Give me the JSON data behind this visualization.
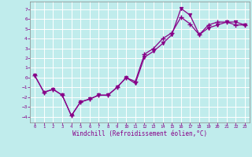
{
  "background_color": "#c0ecec",
  "grid_color": "#ffffff",
  "line_color": "#880088",
  "hours": [
    0,
    1,
    2,
    3,
    4,
    5,
    6,
    7,
    8,
    9,
    10,
    11,
    12,
    13,
    14,
    15,
    16,
    17,
    18,
    19,
    20,
    21,
    22,
    23
  ],
  "temp": [
    0.2,
    -1.5,
    -1.2,
    -1.8,
    -3.9,
    -2.5,
    -2.2,
    -1.8,
    -1.8,
    -1.0,
    0.0,
    -0.4,
    2.4,
    3.0,
    4.0,
    4.6,
    6.2,
    5.5,
    4.4,
    5.4,
    5.7,
    5.7,
    5.4,
    5.4
  ],
  "windchill": [
    0.2,
    -1.5,
    -1.2,
    -1.8,
    -3.9,
    -2.5,
    -2.2,
    -1.8,
    -1.8,
    -1.0,
    0.0,
    -0.6,
    2.1,
    2.7,
    3.5,
    4.4,
    7.1,
    6.4,
    4.4,
    5.1,
    5.4,
    5.7,
    5.7,
    5.4
  ],
  "xlabel": "Windchill (Refroidissement éolien,°C)",
  "ylim": [
    -4.6,
    7.8
  ],
  "xlim": [
    -0.5,
    23.5
  ],
  "yticks": [
    -4,
    -3,
    -2,
    -1,
    0,
    1,
    2,
    3,
    4,
    5,
    6,
    7
  ],
  "xticks": [
    0,
    1,
    2,
    3,
    4,
    5,
    6,
    7,
    8,
    9,
    10,
    11,
    12,
    13,
    14,
    15,
    16,
    17,
    18,
    19,
    20,
    21,
    22,
    23
  ],
  "tick_color": "#880088",
  "label_fontsize": 5.5,
  "tick_fontsize": 4.5
}
